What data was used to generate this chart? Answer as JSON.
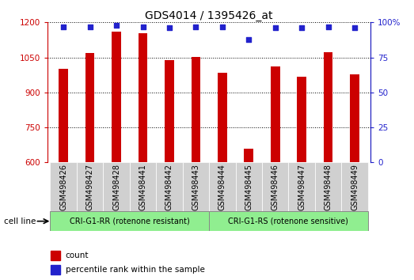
{
  "title": "GDS4014 / 1395426_at",
  "samples": [
    "GSM498426",
    "GSM498427",
    "GSM498428",
    "GSM498441",
    "GSM498442",
    "GSM498443",
    "GSM498444",
    "GSM498445",
    "GSM498446",
    "GSM498447",
    "GSM498448",
    "GSM498449"
  ],
  "counts": [
    1000,
    1068,
    1160,
    1155,
    1040,
    1052,
    985,
    660,
    1010,
    968,
    1072,
    978
  ],
  "percentiles": [
    97,
    97,
    98,
    97,
    96,
    97,
    97,
    88,
    96,
    96,
    97,
    96
  ],
  "ylim": [
    600,
    1200
  ],
  "yticks_left": [
    600,
    750,
    900,
    1050,
    1200
  ],
  "yticks_right": [
    0,
    25,
    50,
    75,
    100
  ],
  "bar_color": "#cc0000",
  "dot_color": "#2222cc",
  "group1_label": "CRI-G1-RR (rotenone resistant)",
  "group2_label": "CRI-G1-RS (rotenone sensitive)",
  "group1_count": 6,
  "group2_count": 6,
  "group_color": "#90ee90",
  "cell_line_label": "cell line",
  "legend_count_label": "count",
  "legend_percentile_label": "percentile rank within the sample",
  "title_fontsize": 10,
  "tick_fontsize": 7.5,
  "label_fontsize": 7,
  "bar_width": 0.35
}
